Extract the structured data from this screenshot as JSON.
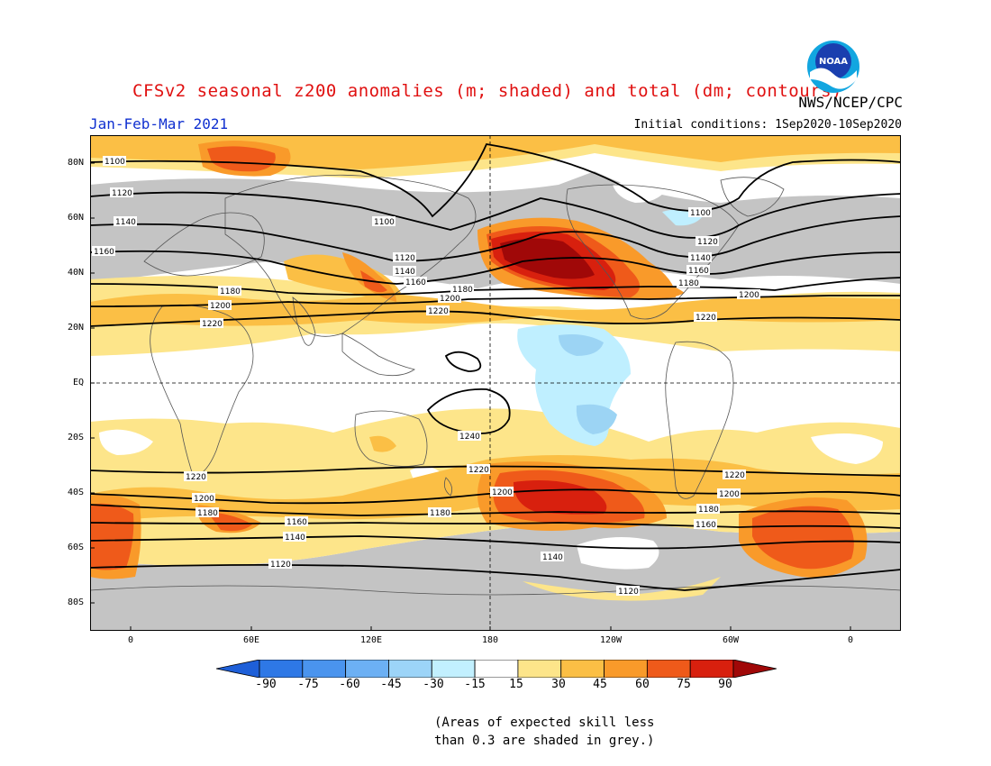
{
  "header": {
    "title": "CFSv2 seasonal z200 anomalies (m; shaded) and total (dm; contours)",
    "agency": "NWS/NCEP/CPC",
    "season": "Jan-Feb-Mar 2021",
    "initial_conditions": "Initial conditions: 1Sep2020-10Sep2020",
    "logo_text": "NOAA"
  },
  "map": {
    "lat_labels": [
      "80N",
      "60N",
      "40N",
      "20N",
      "EQ",
      "20S",
      "40S",
      "60S",
      "80S"
    ],
    "lon_labels": [
      "0",
      "60E",
      "120E",
      "180",
      "120W",
      "60W",
      "0"
    ],
    "contour_labels": [
      "1100",
      "1120",
      "1140",
      "1160",
      "1180",
      "1200",
      "1220",
      "1240"
    ],
    "colors": {
      "skill_grey": "#c4c4c4",
      "pos15": "#fde58a",
      "pos30": "#fbbf45",
      "pos45": "#f99a2a",
      "pos60": "#ef5a1a",
      "pos75": "#d8200e",
      "pos90": "#a00808",
      "neg15": "#bfefff",
      "neg30": "#9cd4f4"
    }
  },
  "colorbar": {
    "tick_labels": [
      "-90",
      "-75",
      "-60",
      "-45",
      "-30",
      "-15",
      "15",
      "30",
      "45",
      "60",
      "75",
      "90"
    ],
    "colors": [
      "#1e5fd8",
      "#2e78e6",
      "#4a94ee",
      "#6cb0f4",
      "#9cd4f8",
      "#c2f0ff",
      "#ffffff",
      "#fde58a",
      "#fbbf45",
      "#f99a2a",
      "#ef5a1a",
      "#d8200e",
      "#a00808"
    ]
  },
  "note": {
    "line1": "(Areas of expected skill less",
    "line2": "than 0.3 are shaded in grey.)"
  }
}
